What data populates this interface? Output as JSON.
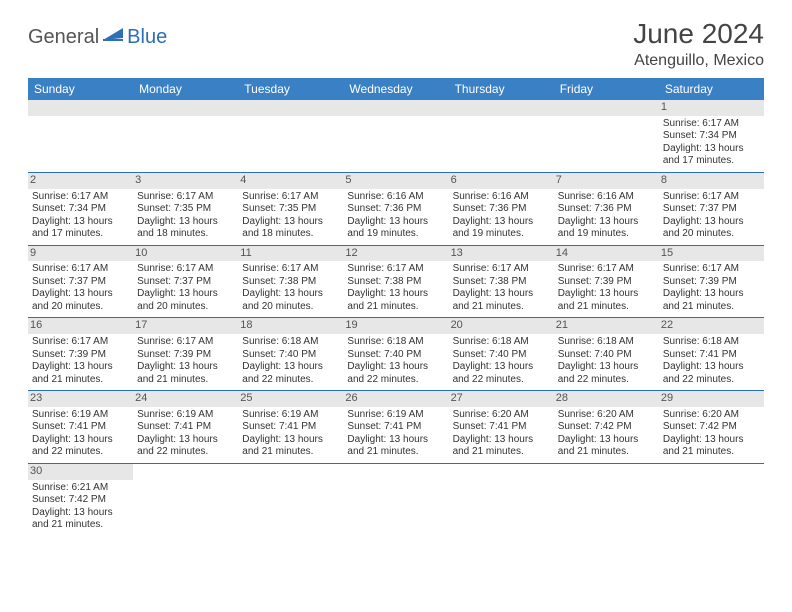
{
  "logo": {
    "text1": "General",
    "text2": "Blue"
  },
  "title": "June 2024",
  "location": "Atenguillo, Mexico",
  "colors": {
    "header_bg": "#3a80c4",
    "header_fg": "#ffffff",
    "rule": "#2c6fb5",
    "daynum_bg": "#e7e7e7",
    "page_bg": "#ffffff",
    "text": "#333333"
  },
  "daysOfWeek": [
    "Sunday",
    "Monday",
    "Tuesday",
    "Wednesday",
    "Thursday",
    "Friday",
    "Saturday"
  ],
  "startOffset": 6,
  "daysInMonth": 30,
  "days": {
    "1": {
      "sunrise": "6:17 AM",
      "sunset": "7:34 PM",
      "daylight_h": 13,
      "daylight_m": 17
    },
    "2": {
      "sunrise": "6:17 AM",
      "sunset": "7:34 PM",
      "daylight_h": 13,
      "daylight_m": 17
    },
    "3": {
      "sunrise": "6:17 AM",
      "sunset": "7:35 PM",
      "daylight_h": 13,
      "daylight_m": 18
    },
    "4": {
      "sunrise": "6:17 AM",
      "sunset": "7:35 PM",
      "daylight_h": 13,
      "daylight_m": 18
    },
    "5": {
      "sunrise": "6:16 AM",
      "sunset": "7:36 PM",
      "daylight_h": 13,
      "daylight_m": 19
    },
    "6": {
      "sunrise": "6:16 AM",
      "sunset": "7:36 PM",
      "daylight_h": 13,
      "daylight_m": 19
    },
    "7": {
      "sunrise": "6:16 AM",
      "sunset": "7:36 PM",
      "daylight_h": 13,
      "daylight_m": 19
    },
    "8": {
      "sunrise": "6:17 AM",
      "sunset": "7:37 PM",
      "daylight_h": 13,
      "daylight_m": 20
    },
    "9": {
      "sunrise": "6:17 AM",
      "sunset": "7:37 PM",
      "daylight_h": 13,
      "daylight_m": 20
    },
    "10": {
      "sunrise": "6:17 AM",
      "sunset": "7:37 PM",
      "daylight_h": 13,
      "daylight_m": 20
    },
    "11": {
      "sunrise": "6:17 AM",
      "sunset": "7:38 PM",
      "daylight_h": 13,
      "daylight_m": 20
    },
    "12": {
      "sunrise": "6:17 AM",
      "sunset": "7:38 PM",
      "daylight_h": 13,
      "daylight_m": 21
    },
    "13": {
      "sunrise": "6:17 AM",
      "sunset": "7:38 PM",
      "daylight_h": 13,
      "daylight_m": 21
    },
    "14": {
      "sunrise": "6:17 AM",
      "sunset": "7:39 PM",
      "daylight_h": 13,
      "daylight_m": 21
    },
    "15": {
      "sunrise": "6:17 AM",
      "sunset": "7:39 PM",
      "daylight_h": 13,
      "daylight_m": 21
    },
    "16": {
      "sunrise": "6:17 AM",
      "sunset": "7:39 PM",
      "daylight_h": 13,
      "daylight_m": 21
    },
    "17": {
      "sunrise": "6:17 AM",
      "sunset": "7:39 PM",
      "daylight_h": 13,
      "daylight_m": 21
    },
    "18": {
      "sunrise": "6:18 AM",
      "sunset": "7:40 PM",
      "daylight_h": 13,
      "daylight_m": 22
    },
    "19": {
      "sunrise": "6:18 AM",
      "sunset": "7:40 PM",
      "daylight_h": 13,
      "daylight_m": 22
    },
    "20": {
      "sunrise": "6:18 AM",
      "sunset": "7:40 PM",
      "daylight_h": 13,
      "daylight_m": 22
    },
    "21": {
      "sunrise": "6:18 AM",
      "sunset": "7:40 PM",
      "daylight_h": 13,
      "daylight_m": 22
    },
    "22": {
      "sunrise": "6:18 AM",
      "sunset": "7:41 PM",
      "daylight_h": 13,
      "daylight_m": 22
    },
    "23": {
      "sunrise": "6:19 AM",
      "sunset": "7:41 PM",
      "daylight_h": 13,
      "daylight_m": 22
    },
    "24": {
      "sunrise": "6:19 AM",
      "sunset": "7:41 PM",
      "daylight_h": 13,
      "daylight_m": 22
    },
    "25": {
      "sunrise": "6:19 AM",
      "sunset": "7:41 PM",
      "daylight_h": 13,
      "daylight_m": 21
    },
    "26": {
      "sunrise": "6:19 AM",
      "sunset": "7:41 PM",
      "daylight_h": 13,
      "daylight_m": 21
    },
    "27": {
      "sunrise": "6:20 AM",
      "sunset": "7:41 PM",
      "daylight_h": 13,
      "daylight_m": 21
    },
    "28": {
      "sunrise": "6:20 AM",
      "sunset": "7:42 PM",
      "daylight_h": 13,
      "daylight_m": 21
    },
    "29": {
      "sunrise": "6:20 AM",
      "sunset": "7:42 PM",
      "daylight_h": 13,
      "daylight_m": 21
    },
    "30": {
      "sunrise": "6:21 AM",
      "sunset": "7:42 PM",
      "daylight_h": 13,
      "daylight_m": 21
    }
  },
  "labels": {
    "sunrise_prefix": "Sunrise: ",
    "sunset_prefix": "Sunset: ",
    "daylight_prefix": "Daylight: ",
    "daylight_hours_word": " hours",
    "daylight_join": " and ",
    "daylight_minutes_word": " minutes."
  }
}
